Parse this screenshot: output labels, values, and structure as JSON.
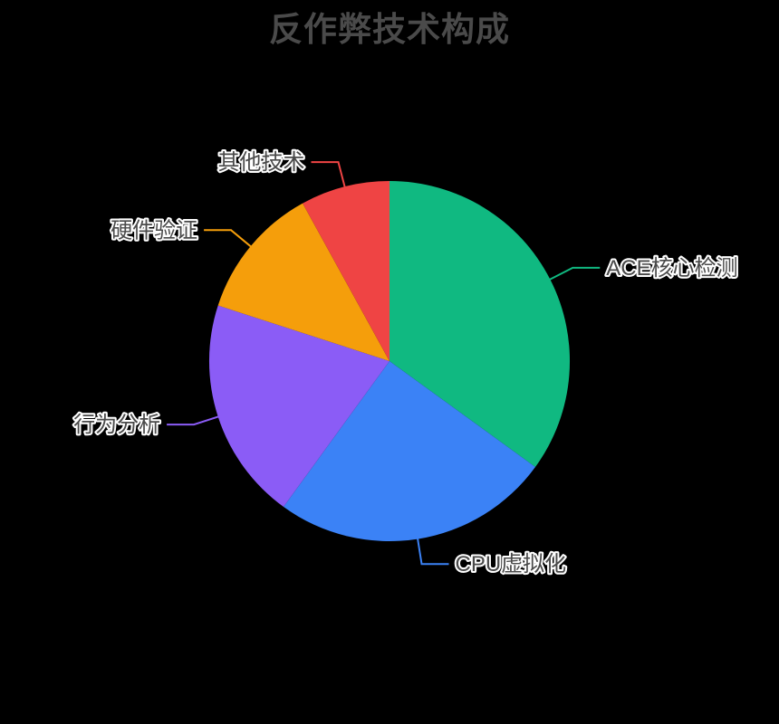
{
  "title": "反作弊技术构成",
  "background_color": "#000000",
  "title_color": "#4a4a4a",
  "label_style": {
    "color": "#4a4a4a",
    "outline_color": "#ffffff"
  },
  "chart_data": {
    "type": "pie",
    "title": "反作弊技术构成",
    "categories": [
      "ACE核心检测",
      "CPU虚拟化",
      "行为分析",
      "硬件验证",
      "其他技术"
    ],
    "values": [
      35,
      25,
      20,
      12,
      8
    ],
    "colors": [
      "#10B981",
      "#3B82F6",
      "#8B5CF6",
      "#F59E0B",
      "#EF4444"
    ],
    "unit": "percent",
    "start_angle_deg": 0,
    "direction": "clockwise",
    "center": [
      430,
      399
    ],
    "radius": 199,
    "leader_length": 28,
    "leader_length2": 30,
    "legend": "none",
    "label_placement": "outside-with-leader-lines",
    "grid": false
  }
}
